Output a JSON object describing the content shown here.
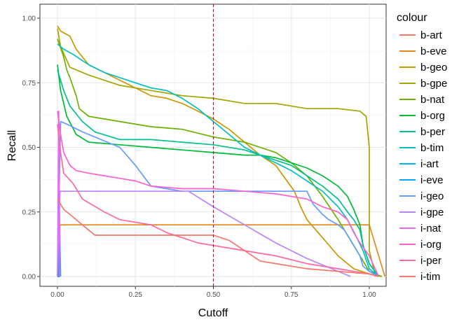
{
  "chart_data": {
    "type": "line",
    "xlabel": "Cutoff",
    "ylabel": "Recall",
    "xlim": [
      0,
      1.05
    ],
    "ylim": [
      0,
      1.0
    ],
    "x_ticks": [
      "0.00",
      "0.25",
      "0.50",
      "0.75",
      "1.00"
    ],
    "y_ticks": [
      "0.00",
      "0.25",
      "0.50",
      "0.75",
      "1.00"
    ],
    "grid": true,
    "legend_title": "colour",
    "legend_position": "right",
    "cutoff_line": {
      "x": 0.5,
      "color": "#b2182b",
      "style": "dashed"
    },
    "series": [
      {
        "name": "b-art",
        "color": "#F8766D",
        "points": [
          [
            0.0,
            0.0
          ],
          [
            0.005,
            0.0
          ],
          [
            0.006,
            0.0
          ]
        ]
      },
      {
        "name": "b-eve",
        "color": "#E7861B",
        "points": [
          [
            0.0,
            0.0
          ],
          [
            0.006,
            0.0
          ],
          [
            0.008,
            0.2
          ],
          [
            1.0,
            0.2
          ],
          [
            1.05,
            0.0
          ]
        ]
      },
      {
        "name": "b-geo",
        "color": "#C99800",
        "points": [
          [
            0.0,
            0.97
          ],
          [
            0.01,
            0.95
          ],
          [
            0.04,
            0.93
          ],
          [
            0.06,
            0.88
          ],
          [
            0.1,
            0.82
          ],
          [
            0.15,
            0.79
          ],
          [
            0.2,
            0.76
          ],
          [
            0.25,
            0.73
          ],
          [
            0.3,
            0.7
          ],
          [
            0.35,
            0.69
          ],
          [
            0.4,
            0.67
          ],
          [
            0.45,
            0.64
          ],
          [
            0.5,
            0.61
          ],
          [
            0.55,
            0.57
          ],
          [
            0.6,
            0.52
          ],
          [
            0.65,
            0.47
          ],
          [
            0.7,
            0.43
          ],
          [
            0.76,
            0.33
          ],
          [
            0.78,
            0.27
          ],
          [
            0.8,
            0.22
          ],
          [
            0.85,
            0.15
          ],
          [
            0.9,
            0.08
          ],
          [
            0.95,
            0.03
          ],
          [
            1.0,
            0.01
          ],
          [
            1.04,
            0.0
          ]
        ]
      },
      {
        "name": "b-gpe",
        "color": "#A3A500",
        "points": [
          [
            0.0,
            0.96
          ],
          [
            0.01,
            0.89
          ],
          [
            0.04,
            0.81
          ],
          [
            0.1,
            0.78
          ],
          [
            0.2,
            0.74
          ],
          [
            0.3,
            0.72
          ],
          [
            0.4,
            0.7
          ],
          [
            0.5,
            0.69
          ],
          [
            0.6,
            0.67
          ],
          [
            0.7,
            0.67
          ],
          [
            0.8,
            0.65
          ],
          [
            0.9,
            0.65
          ],
          [
            0.97,
            0.64
          ],
          [
            0.99,
            0.62
          ],
          [
            1.0,
            0.5
          ],
          [
            1.0,
            0.1
          ],
          [
            1.02,
            0.0
          ]
        ]
      },
      {
        "name": "b-nat",
        "color": "#6BB100",
        "points": [
          [
            0.0,
            0.92
          ],
          [
            0.02,
            0.85
          ],
          [
            0.03,
            0.8
          ],
          [
            0.04,
            0.77
          ],
          [
            0.06,
            0.7
          ],
          [
            0.07,
            0.65
          ],
          [
            0.1,
            0.62
          ],
          [
            0.15,
            0.61
          ],
          [
            0.2,
            0.6
          ],
          [
            0.3,
            0.58
          ],
          [
            0.4,
            0.57
          ],
          [
            0.5,
            0.54
          ],
          [
            0.6,
            0.52
          ],
          [
            0.65,
            0.5
          ],
          [
            0.7,
            0.48
          ],
          [
            0.75,
            0.44
          ],
          [
            0.8,
            0.39
          ],
          [
            0.85,
            0.31
          ],
          [
            0.9,
            0.22
          ],
          [
            0.95,
            0.12
          ],
          [
            0.98,
            0.06
          ],
          [
            1.0,
            0.02
          ],
          [
            1.04,
            0.0
          ]
        ]
      },
      {
        "name": "b-org",
        "color": "#00BA38",
        "points": [
          [
            0.0,
            0.82
          ],
          [
            0.01,
            0.72
          ],
          [
            0.03,
            0.62
          ],
          [
            0.06,
            0.55
          ],
          [
            0.1,
            0.52
          ],
          [
            0.2,
            0.51
          ],
          [
            0.3,
            0.5
          ],
          [
            0.4,
            0.49
          ],
          [
            0.5,
            0.48
          ],
          [
            0.6,
            0.47
          ],
          [
            0.65,
            0.47
          ],
          [
            0.7,
            0.46
          ],
          [
            0.75,
            0.44
          ],
          [
            0.8,
            0.42
          ],
          [
            0.85,
            0.39
          ],
          [
            0.9,
            0.35
          ],
          [
            0.93,
            0.31
          ],
          [
            0.95,
            0.26
          ],
          [
            0.97,
            0.2
          ],
          [
            0.98,
            0.12
          ],
          [
            1.0,
            0.05
          ],
          [
            1.03,
            0.0
          ]
        ]
      },
      {
        "name": "b-per",
        "color": "#00C08B",
        "points": [
          [
            0.0,
            0.8
          ],
          [
            0.02,
            0.72
          ],
          [
            0.04,
            0.66
          ],
          [
            0.08,
            0.6
          ],
          [
            0.12,
            0.56
          ],
          [
            0.2,
            0.53
          ],
          [
            0.3,
            0.53
          ],
          [
            0.4,
            0.52
          ],
          [
            0.5,
            0.51
          ],
          [
            0.6,
            0.49
          ],
          [
            0.65,
            0.47
          ],
          [
            0.7,
            0.45
          ],
          [
            0.75,
            0.43
          ],
          [
            0.8,
            0.39
          ],
          [
            0.85,
            0.35
          ],
          [
            0.9,
            0.3
          ],
          [
            0.93,
            0.25
          ],
          [
            0.95,
            0.22
          ],
          [
            0.97,
            0.18
          ],
          [
            0.98,
            0.12
          ],
          [
            1.0,
            0.05
          ],
          [
            1.03,
            0.0
          ]
        ]
      },
      {
        "name": "b-tim",
        "color": "#00BFC4",
        "points": [
          [
            0.0,
            0.9
          ],
          [
            0.02,
            0.88
          ],
          [
            0.05,
            0.86
          ],
          [
            0.1,
            0.82
          ],
          [
            0.15,
            0.79
          ],
          [
            0.2,
            0.77
          ],
          [
            0.25,
            0.75
          ],
          [
            0.3,
            0.73
          ],
          [
            0.35,
            0.72
          ],
          [
            0.4,
            0.69
          ],
          [
            0.45,
            0.65
          ],
          [
            0.5,
            0.6
          ],
          [
            0.55,
            0.55
          ],
          [
            0.6,
            0.5
          ],
          [
            0.65,
            0.47
          ],
          [
            0.7,
            0.44
          ],
          [
            0.75,
            0.41
          ],
          [
            0.8,
            0.37
          ],
          [
            0.85,
            0.33
          ],
          [
            0.9,
            0.27
          ],
          [
            0.93,
            0.22
          ],
          [
            0.96,
            0.15
          ],
          [
            0.98,
            0.1
          ],
          [
            1.0,
            0.03
          ],
          [
            1.03,
            0.0
          ]
        ]
      },
      {
        "name": "i-art",
        "color": "#00B4EF",
        "points": [
          [
            0.0,
            0.0
          ],
          [
            0.005,
            0.0
          ],
          [
            0.008,
            0.0
          ]
        ]
      },
      {
        "name": "i-eve",
        "color": "#00A5FF",
        "points": [
          [
            0.0,
            0.0
          ],
          [
            0.004,
            0.0
          ],
          [
            0.006,
            0.25
          ],
          [
            0.01,
            0.0
          ]
        ]
      },
      {
        "name": "i-geo",
        "color": "#619CFF",
        "points": [
          [
            0.0,
            0.0
          ],
          [
            0.01,
            0.6
          ],
          [
            0.03,
            0.59
          ],
          [
            0.08,
            0.56
          ],
          [
            0.12,
            0.54
          ],
          [
            0.2,
            0.5
          ],
          [
            0.25,
            0.43
          ],
          [
            0.3,
            0.35
          ],
          [
            0.4,
            0.33
          ],
          [
            0.5,
            0.33
          ],
          [
            0.6,
            0.33
          ],
          [
            0.7,
            0.33
          ],
          [
            0.75,
            0.33
          ],
          [
            0.8,
            0.33
          ],
          [
            0.82,
            0.28
          ],
          [
            0.85,
            0.24
          ],
          [
            0.87,
            0.22
          ],
          [
            0.9,
            0.2
          ],
          [
            0.92,
            0.18
          ],
          [
            0.95,
            0.12
          ],
          [
            0.97,
            0.08
          ],
          [
            0.98,
            0.04
          ],
          [
            1.0,
            0.02
          ],
          [
            1.03,
            0.0
          ]
        ]
      },
      {
        "name": "i-gpe",
        "color": "#B983FF",
        "points": [
          [
            0.0,
            0.0
          ],
          [
            0.008,
            0.33
          ],
          [
            0.1,
            0.33
          ],
          [
            0.3,
            0.33
          ],
          [
            0.42,
            0.33
          ],
          [
            0.5,
            0.27
          ],
          [
            0.6,
            0.2
          ],
          [
            0.7,
            0.13
          ],
          [
            0.8,
            0.07
          ],
          [
            0.9,
            0.02
          ],
          [
            0.94,
            0.0
          ]
        ]
      },
      {
        "name": "i-nat",
        "color": "#E76BF3",
        "points": [
          [
            0.0,
            0.0
          ],
          [
            0.004,
            0.64
          ],
          [
            0.008,
            0.0
          ]
        ]
      },
      {
        "name": "i-org",
        "color": "#FD61D1",
        "points": [
          [
            0.0,
            0.64
          ],
          [
            0.01,
            0.55
          ],
          [
            0.02,
            0.48
          ],
          [
            0.04,
            0.43
          ],
          [
            0.06,
            0.41
          ],
          [
            0.1,
            0.4
          ],
          [
            0.15,
            0.39
          ],
          [
            0.2,
            0.38
          ],
          [
            0.25,
            0.37
          ],
          [
            0.3,
            0.35
          ],
          [
            0.4,
            0.34
          ],
          [
            0.5,
            0.34
          ],
          [
            0.6,
            0.33
          ],
          [
            0.7,
            0.32
          ],
          [
            0.8,
            0.3
          ],
          [
            0.85,
            0.27
          ],
          [
            0.9,
            0.25
          ],
          [
            0.93,
            0.22
          ],
          [
            0.95,
            0.17
          ],
          [
            0.97,
            0.13
          ],
          [
            1.0,
            0.08
          ],
          [
            1.03,
            0.0
          ]
        ]
      },
      {
        "name": "i-per",
        "color": "#FF67A4",
        "points": [
          [
            0.0,
            0.59
          ],
          [
            0.01,
            0.48
          ],
          [
            0.02,
            0.4
          ],
          [
            0.05,
            0.36
          ],
          [
            0.08,
            0.3
          ],
          [
            0.15,
            0.25
          ],
          [
            0.2,
            0.22
          ],
          [
            0.25,
            0.21
          ],
          [
            0.3,
            0.2
          ],
          [
            0.35,
            0.17
          ],
          [
            0.4,
            0.15
          ],
          [
            0.45,
            0.13
          ],
          [
            0.5,
            0.12
          ],
          [
            0.55,
            0.11
          ],
          [
            0.6,
            0.1
          ],
          [
            0.7,
            0.08
          ],
          [
            0.8,
            0.05
          ],
          [
            0.9,
            0.03
          ],
          [
            1.0,
            0.01
          ],
          [
            1.03,
            0.0
          ]
        ]
      },
      {
        "name": "i-tim",
        "color": "#F8766D",
        "points": [
          [
            0.0,
            0.3
          ],
          [
            0.01,
            0.28
          ],
          [
            0.02,
            0.26
          ],
          [
            0.05,
            0.23
          ],
          [
            0.08,
            0.2
          ],
          [
            0.12,
            0.16
          ],
          [
            0.3,
            0.16
          ],
          [
            0.5,
            0.16
          ],
          [
            0.55,
            0.14
          ],
          [
            0.6,
            0.1
          ],
          [
            0.65,
            0.06
          ],
          [
            0.7,
            0.05
          ],
          [
            0.8,
            0.03
          ],
          [
            0.9,
            0.02
          ],
          [
            1.0,
            0.01
          ],
          [
            1.03,
            0.0
          ]
        ]
      }
    ]
  }
}
